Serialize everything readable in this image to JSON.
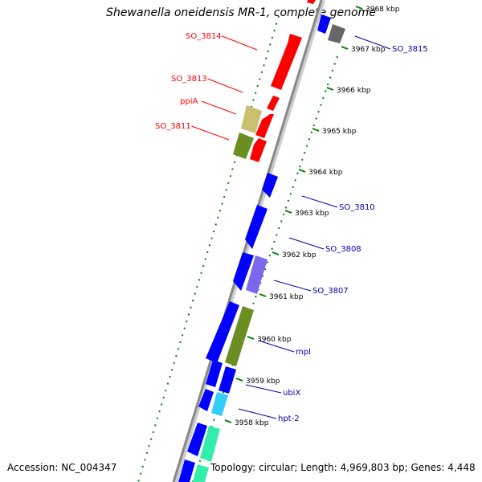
{
  "title": "Shewanella oneidensis MR-1, complete genome",
  "accession": "Accession: NC_004347",
  "summary": "Topology: circular; Length: 4,969,803 bp; Genes: 4,448",
  "tick_labels": [
    "3968 kbp",
    "3967 kbp",
    "3966 kbp",
    "3965 kbp",
    "3964 kbp",
    "3963 kbp",
    "3962 kbp",
    "3961 kbp",
    "3960 kbp",
    "3959 kbp",
    "3958 kbp"
  ],
  "gene_labels_left": [
    "SO_3814",
    "SO_3813",
    "ppiA",
    "SO_3811"
  ],
  "gene_labels_right": [
    "SO_3815",
    "SO_3810",
    "SO_3808",
    "SO_3807",
    "mpl",
    "ubiX",
    "hpt-2"
  ],
  "colors": {
    "forward_gene": "#ff0000",
    "reverse_gene": "#0000ff",
    "left_label": "#ff0000",
    "right_label": "#0000aa",
    "backbone": "#888888",
    "tick": "#008000",
    "cog_olive": "#6b8e23",
    "cog_khaki": "#c8c070",
    "cog_slate": "#7b68ee",
    "cog_cyan": "#33ccff",
    "cog_aqua": "#33eeaa",
    "cog_gray": "#666666"
  }
}
